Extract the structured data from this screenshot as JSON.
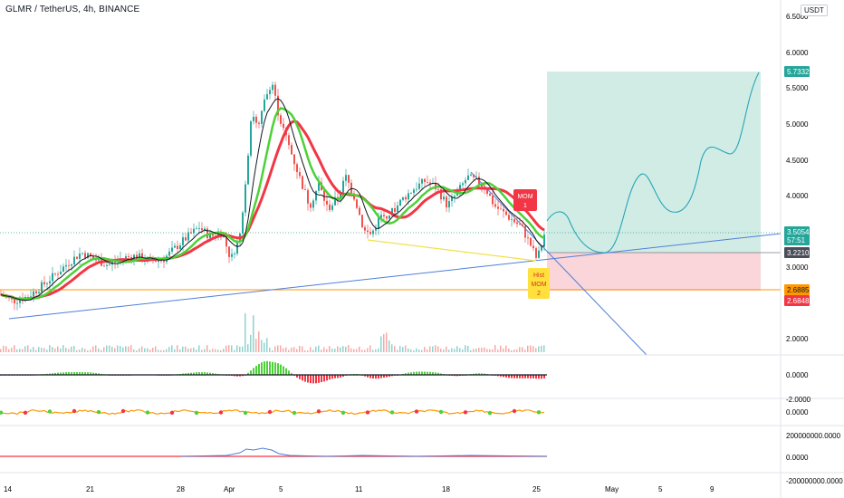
{
  "header": {
    "title": "GLMR / TetherUS, 4h, BINANCE",
    "currency": "USDT"
  },
  "chart_data": {
    "type": "candlestick",
    "title": "GLMR / TetherUS, 4h, BINANCE",
    "price_axis": {
      "ticks": [
        "6.5000",
        "6.0000",
        "5.5000",
        "5.0000",
        "4.5000",
        "4.0000",
        "3.5000",
        "3.0000",
        "2.0000"
      ],
      "range": [
        1.8,
        6.6
      ]
    },
    "time_axis": {
      "ticks": [
        "14",
        "21",
        "28",
        "Apr",
        "5",
        "11",
        "18",
        "25",
        "May",
        "5",
        "9"
      ]
    },
    "price_series": [
      {
        "x": 0,
        "y": 2.62
      },
      {
        "x": 14,
        "y": 2.52
      },
      {
        "x": 30,
        "y": 2.58
      },
      {
        "x": 45,
        "y": 2.72
      },
      {
        "x": 60,
        "y": 2.88
      },
      {
        "x": 75,
        "y": 3.05
      },
      {
        "x": 90,
        "y": 3.2
      },
      {
        "x": 105,
        "y": 3.1
      },
      {
        "x": 120,
        "y": 3.02
      },
      {
        "x": 135,
        "y": 3.12
      },
      {
        "x": 150,
        "y": 3.15
      },
      {
        "x": 165,
        "y": 3.08
      },
      {
        "x": 180,
        "y": 3.1
      },
      {
        "x": 195,
        "y": 3.28
      },
      {
        "x": 210,
        "y": 3.45
      },
      {
        "x": 220,
        "y": 3.55
      },
      {
        "x": 232,
        "y": 3.42
      },
      {
        "x": 245,
        "y": 3.48
      },
      {
        "x": 255,
        "y": 3.1
      },
      {
        "x": 265,
        "y": 3.45
      },
      {
        "x": 272,
        "y": 4.3
      },
      {
        "x": 278,
        "y": 5.2
      },
      {
        "x": 285,
        "y": 4.9
      },
      {
        "x": 292,
        "y": 5.3
      },
      {
        "x": 300,
        "y": 5.6
      },
      {
        "x": 308,
        "y": 5.1
      },
      {
        "x": 316,
        "y": 4.8
      },
      {
        "x": 324,
        "y": 4.5
      },
      {
        "x": 332,
        "y": 4.2
      },
      {
        "x": 342,
        "y": 3.85
      },
      {
        "x": 352,
        "y": 4.15
      },
      {
        "x": 362,
        "y": 3.8
      },
      {
        "x": 372,
        "y": 3.95
      },
      {
        "x": 382,
        "y": 4.25
      },
      {
        "x": 392,
        "y": 3.95
      },
      {
        "x": 402,
        "y": 3.5
      },
      {
        "x": 410,
        "y": 3.45
      },
      {
        "x": 420,
        "y": 3.7
      },
      {
        "x": 432,
        "y": 3.75
      },
      {
        "x": 445,
        "y": 3.95
      },
      {
        "x": 458,
        "y": 4.1
      },
      {
        "x": 470,
        "y": 4.2
      },
      {
        "x": 482,
        "y": 4.1
      },
      {
        "x": 494,
        "y": 3.85
      },
      {
        "x": 506,
        "y": 4.05
      },
      {
        "x": 516,
        "y": 4.25
      },
      {
        "x": 526,
        "y": 4.2
      },
      {
        "x": 536,
        "y": 4.1
      },
      {
        "x": 546,
        "y": 3.85
      },
      {
        "x": 556,
        "y": 3.75
      },
      {
        "x": 566,
        "y": 3.65
      },
      {
        "x": 576,
        "y": 3.55
      },
      {
        "x": 586,
        "y": 3.3
      },
      {
        "x": 593,
        "y": 3.1
      },
      {
        "x": 598,
        "y": 3.3
      },
      {
        "x": 602,
        "y": 3.5
      }
    ],
    "annotations": [
      {
        "label_lines": [
          "MOM",
          "1"
        ],
        "kind": "red-badge"
      },
      {
        "label_lines": [
          "Hist",
          "MOM",
          "2"
        ],
        "kind": "yellow-badge"
      }
    ],
    "price_labels": {
      "target": "5.7332",
      "current": "3.5054",
      "countdown": "57:51",
      "entry": "3.2210",
      "stop1": "2.6885",
      "stop2": "2.6848"
    },
    "position": {
      "type": "long",
      "entry": 3.221,
      "target": 5.7332,
      "stop": 2.6848
    },
    "indicator_panes": [
      {
        "name": "momentum-histogram",
        "ticks": [
          "0.0000",
          "-2.0000"
        ]
      },
      {
        "name": "oscillator",
        "ticks": [
          "0.0000"
        ]
      },
      {
        "name": "volume-delta",
        "ticks": [
          "200000000.0000",
          "0.0000",
          "-200000000.0000"
        ]
      }
    ],
    "grid": false,
    "colors": {
      "up": "#26a69a",
      "down": "#ef5350",
      "target_zone": "#d1ece5",
      "stop_zone": "#fad5d9",
      "ma_red": "#f23645",
      "ma_green": "#4cd137",
      "trendline": "#4f7fd9",
      "yellow_line": "#f2e14a",
      "orange_line": "#ff9800"
    }
  }
}
